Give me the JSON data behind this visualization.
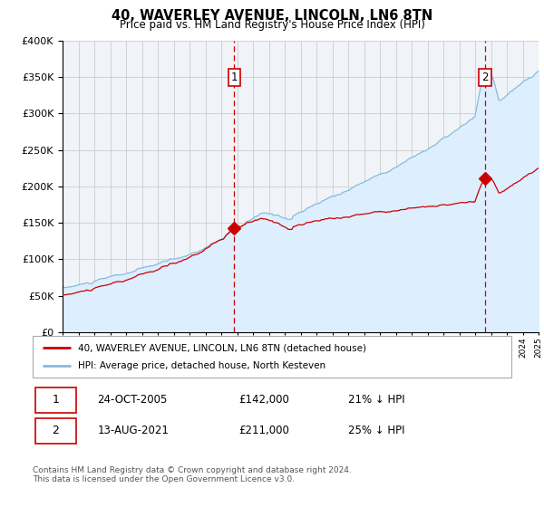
{
  "title": "40, WAVERLEY AVENUE, LINCOLN, LN6 8TN",
  "subtitle": "Price paid vs. HM Land Registry's House Price Index (HPI)",
  "legend_label1": "40, WAVERLEY AVENUE, LINCOLN, LN6 8TN (detached house)",
  "legend_label2": "HPI: Average price, detached house, North Kesteven",
  "annotation1_label": "1",
  "annotation1_date": "24-OCT-2005",
  "annotation1_price": "£142,000",
  "annotation1_hpi": "21% ↓ HPI",
  "annotation1_year": 2005.82,
  "annotation1_value": 142000,
  "annotation2_label": "2",
  "annotation2_date": "13-AUG-2021",
  "annotation2_price": "£211,000",
  "annotation2_hpi": "25% ↓ HPI",
  "annotation2_year": 2021.62,
  "annotation2_value": 211000,
  "footnote1": "Contains HM Land Registry data © Crown copyright and database right 2024.",
  "footnote2": "This data is licensed under the Open Government Licence v3.0.",
  "red_color": "#cc0000",
  "blue_color": "#88bbdd",
  "blue_fill_color": "#ddeeff",
  "background_color": "#f0f4f8",
  "grid_color": "#cccccc",
  "xmin": 1995,
  "xmax": 2025,
  "ymin": 0,
  "ymax": 400000,
  "hpi_seed": 10,
  "red_seed": 7
}
